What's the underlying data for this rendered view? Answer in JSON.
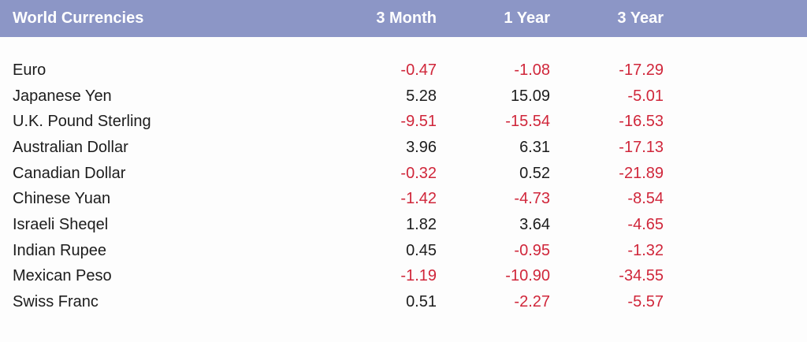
{
  "colors": {
    "header_bg": "#8c96c6",
    "header_text": "#ffffff",
    "negative": "#d0263a",
    "positive": "#1c1c1c"
  },
  "header": {
    "title": "World Currencies",
    "col1": "3 Month",
    "col2": "1 Year",
    "col3": "3 Year"
  },
  "rows": [
    {
      "name": "Euro",
      "m3": "-0.47",
      "y1": "-1.08",
      "y3": "-17.29"
    },
    {
      "name": "Japanese Yen",
      "m3": "5.28",
      "y1": "15.09",
      "y3": "-5.01"
    },
    {
      "name": "U.K. Pound Sterling",
      "m3": "-9.51",
      "y1": "-15.54",
      "y3": "-16.53"
    },
    {
      "name": "Australian Dollar",
      "m3": "3.96",
      "y1": "6.31",
      "y3": "-17.13"
    },
    {
      "name": "Canadian Dollar",
      "m3": "-0.32",
      "y1": "0.52",
      "y3": "-21.89"
    },
    {
      "name": "Chinese Yuan",
      "m3": "-1.42",
      "y1": "-4.73",
      "y3": "-8.54"
    },
    {
      "name": "Israeli Sheqel",
      "m3": "1.82",
      "y1": "3.64",
      "y3": "-4.65"
    },
    {
      "name": "Indian Rupee",
      "m3": "0.45",
      "y1": "-0.95",
      "y3": "-1.32"
    },
    {
      "name": "Mexican Peso",
      "m3": "-1.19",
      "y1": "-10.90",
      "y3": "-34.55"
    },
    {
      "name": "Swiss Franc",
      "m3": "0.51",
      "y1": "-2.27",
      "y3": "-5.57"
    }
  ]
}
